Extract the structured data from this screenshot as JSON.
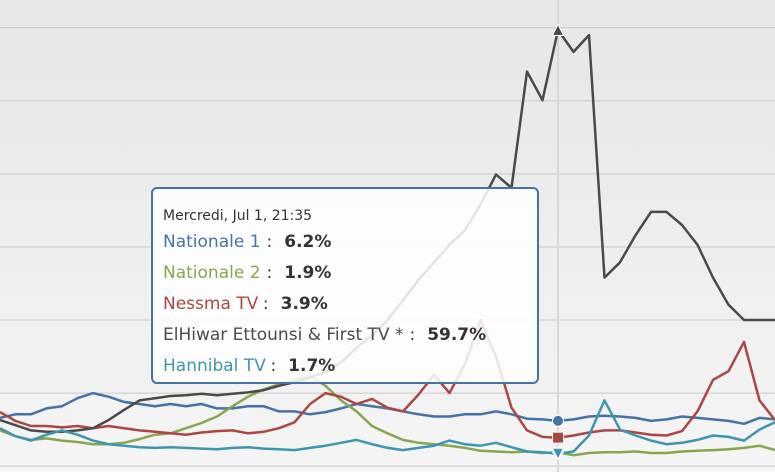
{
  "chart_data": {
    "type": "line",
    "ylim": [
      -0.8,
      63.8
    ],
    "yticks": [
      0,
      10,
      20,
      30,
      40,
      50,
      60
    ],
    "grid": true,
    "tooltip": {
      "title": "Mercredi, Jul 1, 21:35",
      "separator": ":"
    },
    "series": [
      {
        "name": "Nationale 1",
        "color": "#4572A7",
        "marker": "circle",
        "values": [
          6.6,
          7.1,
          7.1,
          7.9,
          8.2,
          9.3,
          10.0,
          9.5,
          8.8,
          8.5,
          8.2,
          8.5,
          8.2,
          8.5,
          7.9,
          7.9,
          8.2,
          8.2,
          7.5,
          7.5,
          7.1,
          7.4,
          7.9,
          8.5,
          8.2,
          7.9,
          7.5,
          7.1,
          6.8,
          6.8,
          7.1,
          7.1,
          7.5,
          7.1,
          6.5,
          6.4,
          6.2,
          6.4,
          6.8,
          6.9,
          6.8,
          6.6,
          6.2,
          6.4,
          6.8,
          6.6,
          6.4,
          6.2,
          5.8,
          6.6,
          6.4
        ],
        "value_labels": [
          null,
          null,
          null,
          null,
          null,
          null,
          null,
          null,
          null,
          null,
          null,
          null,
          null,
          null,
          null,
          null,
          null,
          null,
          null,
          null,
          null,
          null,
          null,
          null,
          null,
          null,
          null,
          null,
          null,
          null,
          null,
          null,
          null,
          null,
          null,
          null,
          "6.2%",
          null,
          null,
          null,
          null,
          null,
          null,
          null,
          null,
          null,
          null,
          null,
          null,
          null,
          null
        ]
      },
      {
        "name": "Nationale 2",
        "color": "#89A54E",
        "marker": "diamond",
        "values": [
          4.9,
          4.1,
          3.6,
          3.8,
          3.5,
          3.3,
          3.0,
          3.0,
          3.2,
          3.7,
          4.3,
          4.5,
          5.2,
          5.9,
          6.8,
          8.2,
          9.5,
          10.5,
          11.2,
          11.8,
          12.4,
          11.0,
          9.0,
          7.5,
          5.5,
          4.5,
          3.6,
          3.2,
          3.0,
          2.8,
          2.5,
          2.1,
          2.0,
          1.9,
          2.0,
          1.8,
          1.9,
          1.5,
          1.8,
          1.9,
          1.9,
          2.0,
          1.8,
          1.8,
          2.0,
          2.1,
          2.2,
          2.3,
          2.5,
          2.8,
          2.2
        ],
        "value_labels": [
          null,
          null,
          null,
          null,
          null,
          null,
          null,
          null,
          null,
          null,
          null,
          null,
          null,
          null,
          null,
          null,
          null,
          null,
          null,
          null,
          null,
          null,
          null,
          null,
          null,
          null,
          null,
          null,
          null,
          null,
          null,
          null,
          null,
          null,
          null,
          null,
          "1.9%",
          null,
          null,
          null,
          null,
          null,
          null,
          null,
          null,
          null,
          null,
          null,
          null,
          null,
          null
        ]
      },
      {
        "name": "Nessma TV",
        "color": "#AA4643",
        "marker": "square",
        "values": [
          7.4,
          6.2,
          5.5,
          5.5,
          5.3,
          5.5,
          5.2,
          5.5,
          5.2,
          4.9,
          4.7,
          4.5,
          4.3,
          4.6,
          4.8,
          4.9,
          4.5,
          4.7,
          5.2,
          6.0,
          8.5,
          10.0,
          9.5,
          8.5,
          9.2,
          8.0,
          7.5,
          9.8,
          12.5,
          10.0,
          14.0,
          20.0,
          15.0,
          8.0,
          4.9,
          4.0,
          3.9,
          4.2,
          4.6,
          4.9,
          4.9,
          4.6,
          4.3,
          4.2,
          4.8,
          7.5,
          11.8,
          13.0,
          17.0,
          9.0,
          6.3
        ],
        "value_labels": [
          null,
          null,
          null,
          null,
          null,
          null,
          null,
          null,
          null,
          null,
          null,
          null,
          null,
          null,
          null,
          null,
          null,
          null,
          null,
          null,
          null,
          null,
          null,
          null,
          null,
          null,
          null,
          null,
          null,
          null,
          null,
          null,
          null,
          null,
          null,
          null,
          "3.9%",
          null,
          null,
          null,
          null,
          null,
          null,
          null,
          null,
          null,
          null,
          null,
          null,
          null,
          null
        ]
      },
      {
        "name": "ElHiwar Ettounsi & First TV *",
        "color": "#4a4a4a",
        "marker": "triangle",
        "values": [
          6.3,
          5.6,
          4.9,
          4.7,
          4.7,
          4.9,
          5.2,
          6.3,
          7.7,
          9.0,
          9.3,
          9.6,
          9.7,
          9.9,
          9.7,
          9.9,
          10.1,
          10.4,
          11.0,
          11.5,
          12.1,
          12.9,
          14.2,
          16.2,
          17.9,
          20.0,
          22.7,
          25.5,
          27.9,
          30.3,
          32.3,
          35.8,
          39.9,
          38.1,
          54.0,
          50.1,
          59.7,
          56.7,
          59.0,
          25.8,
          27.9,
          31.6,
          34.8,
          34.8,
          33.0,
          30.3,
          25.8,
          22.1,
          20.0,
          20.0,
          20.0
        ],
        "value_labels": [
          null,
          null,
          null,
          null,
          null,
          null,
          null,
          null,
          null,
          null,
          null,
          null,
          null,
          null,
          null,
          null,
          null,
          null,
          null,
          null,
          null,
          null,
          null,
          null,
          null,
          null,
          null,
          null,
          null,
          null,
          null,
          null,
          null,
          null,
          null,
          null,
          "59.7%",
          null,
          null,
          null,
          null,
          null,
          null,
          null,
          null,
          null,
          null,
          null,
          null,
          null,
          null
        ]
      },
      {
        "name": "Hannibal TV",
        "color": "#3D96AE",
        "marker": "triangle-down",
        "values": [
          5.2,
          4.1,
          3.5,
          4.3,
          4.9,
          4.3,
          3.5,
          3.0,
          2.8,
          2.6,
          2.5,
          2.6,
          2.5,
          2.4,
          2.3,
          2.5,
          2.6,
          2.4,
          2.3,
          2.2,
          2.5,
          2.8,
          3.2,
          3.6,
          3.0,
          2.5,
          2.2,
          2.5,
          2.8,
          3.5,
          3.0,
          2.8,
          3.2,
          2.6,
          2.0,
          1.9,
          1.7,
          2.0,
          4.2,
          9.0,
          5.0,
          4.2,
          3.5,
          3.0,
          3.2,
          3.6,
          4.2,
          4.0,
          3.5,
          5.0,
          6.0
        ],
        "value_labels": [
          null,
          null,
          null,
          null,
          null,
          null,
          null,
          null,
          null,
          null,
          null,
          null,
          null,
          null,
          null,
          null,
          null,
          null,
          null,
          null,
          null,
          null,
          null,
          null,
          null,
          null,
          null,
          null,
          null,
          null,
          null,
          null,
          null,
          null,
          null,
          null,
          "1.7%",
          null,
          null,
          null,
          null,
          null,
          null,
          null,
          null,
          null,
          null,
          null,
          null,
          null,
          null
        ]
      }
    ]
  }
}
